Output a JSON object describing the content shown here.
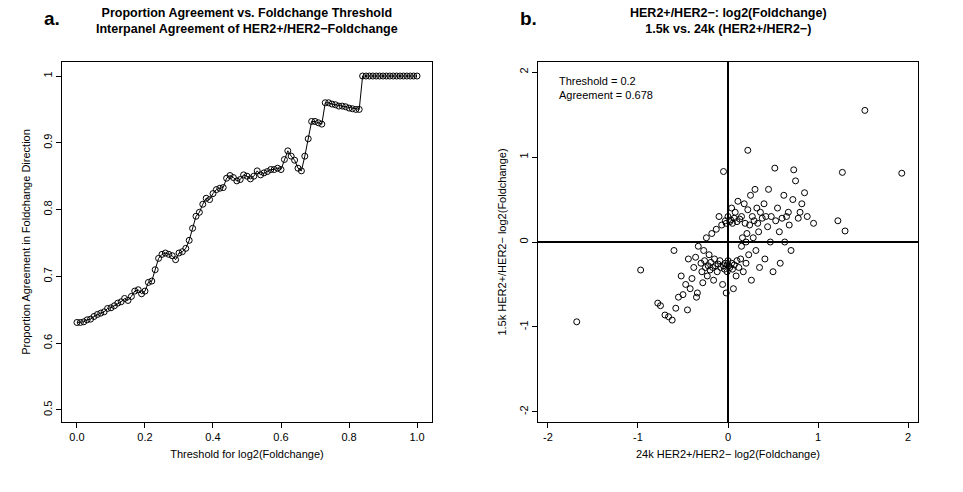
{
  "chart_data": [
    {
      "type": "line",
      "panel_label": "a.",
      "title": [
        "Proportion Agreement vs. Foldchange Threshold",
        "Interpanel Agreement of HER2+/HER2−Foldchange"
      ],
      "x_label": "Threshold for log2(Foldchange)",
      "y_label": "Proportion Agreement in Foldchange Direction",
      "x": [
        0,
        0.01,
        0.02,
        0.03,
        0.04,
        0.05,
        0.06,
        0.07,
        0.08,
        0.09,
        0.1,
        0.11,
        0.12,
        0.13,
        0.14,
        0.15,
        0.16,
        0.17,
        0.18,
        0.19,
        0.2,
        0.21,
        0.22,
        0.23,
        0.24,
        0.25,
        0.26,
        0.27,
        0.28,
        0.29,
        0.3,
        0.31,
        0.32,
        0.33,
        0.34,
        0.35,
        0.36,
        0.37,
        0.38,
        0.39,
        0.4,
        0.41,
        0.42,
        0.43,
        0.44,
        0.45,
        0.46,
        0.47,
        0.48,
        0.49,
        0.5,
        0.51,
        0.52,
        0.53,
        0.54,
        0.55,
        0.56,
        0.57,
        0.58,
        0.59,
        0.6,
        0.61,
        0.62,
        0.63,
        0.64,
        0.65,
        0.66,
        0.67,
        0.68,
        0.69,
        0.7,
        0.71,
        0.72,
        0.73,
        0.74,
        0.75,
        0.76,
        0.77,
        0.78,
        0.79,
        0.8,
        0.81,
        0.82,
        0.83,
        0.84,
        0.85,
        0.86,
        0.87,
        0.88,
        0.89,
        0.9,
        0.91,
        0.92,
        0.93,
        0.94,
        0.95,
        0.96,
        0.97,
        0.98,
        0.99,
        1
      ],
      "values": [
        0.631,
        0.631,
        0.632,
        0.635,
        0.636,
        0.64,
        0.643,
        0.645,
        0.647,
        0.652,
        0.653,
        0.656,
        0.66,
        0.662,
        0.667,
        0.664,
        0.67,
        0.678,
        0.68,
        0.674,
        0.678,
        0.691,
        0.693,
        0.71,
        0.727,
        0.733,
        0.735,
        0.733,
        0.731,
        0.725,
        0.735,
        0.737,
        0.742,
        0.754,
        0.772,
        0.79,
        0.796,
        0.808,
        0.817,
        0.815,
        0.824,
        0.83,
        0.832,
        0.833,
        0.847,
        0.851,
        0.848,
        0.843,
        0.845,
        0.852,
        0.85,
        0.846,
        0.85,
        0.858,
        0.852,
        0.855,
        0.857,
        0.86,
        0.86,
        0.862,
        0.86,
        0.875,
        0.888,
        0.88,
        0.874,
        0.862,
        0.858,
        0.88,
        0.906,
        0.932,
        0.932,
        0.93,
        0.928,
        0.96,
        0.96,
        0.958,
        0.957,
        0.955,
        0.955,
        0.954,
        0.952,
        0.951,
        0.95,
        0.95,
        1,
        1,
        1,
        1,
        1,
        1,
        1,
        1,
        1,
        1,
        1,
        1,
        1,
        1,
        1,
        1,
        1
      ],
      "color": "#000000",
      "marker": "circle-open",
      "line_style": "solid",
      "xlim": [
        -0.044,
        1.044
      ],
      "ylim": [
        0.482,
        1.021
      ],
      "xticks": [
        {
          "value": 0,
          "label": "0.0"
        },
        0.2,
        0.4,
        0.6,
        0.8,
        {
          "value": 1,
          "label": "1.0"
        }
      ],
      "yticks": [
        0.5,
        0.6,
        0.7,
        0.8,
        0.9,
        1
      ],
      "grid": false
    },
    {
      "type": "scatter",
      "panel_label": "b.",
      "title": [
        "HER2+/HER2−: log2(Foldchange)",
        "1.5k vs. 24k (HER2+/HER2−)"
      ],
      "x_label": "24k HER2+/HER2− log2(Foldchange)",
      "y_label": "1.5k HER2+/HER2− log2(Foldchange)",
      "annotations": [
        "Threshold = 0.2",
        "Agreement = 0.678"
      ],
      "x": [
        -1.68,
        -0.97,
        -0.78,
        -0.75,
        -0.7,
        -0.66,
        -0.62,
        -0.58,
        -0.55,
        -0.5,
        -0.47,
        -0.45,
        -0.42,
        -0.4,
        -0.38,
        -0.36,
        -0.34,
        -0.33,
        -0.3,
        -0.29,
        -0.28,
        -0.27,
        -0.26,
        -0.25,
        -0.24,
        -0.23,
        -0.22,
        -0.21,
        -0.2,
        -0.19,
        -0.18,
        -0.17,
        -0.16,
        -0.15,
        -0.14,
        -0.13,
        -0.12,
        -0.11,
        -0.1,
        -0.09,
        -0.08,
        -0.07,
        -0.06,
        -0.05,
        -0.05,
        -0.04,
        -0.03,
        -0.03,
        -0.02,
        -0.02,
        -0.01,
        -0.01,
        0,
        0,
        0.01,
        0.02,
        0.02,
        0.03,
        0.04,
        0.04,
        0.05,
        0.05,
        0.06,
        0.07,
        0.07,
        0.08,
        0.09,
        0.1,
        0.1,
        0.11,
        0.12,
        0.13,
        0.14,
        0.15,
        0.15,
        0.16,
        0.17,
        0.18,
        0.19,
        0.2,
        0.2,
        0.21,
        0.22,
        0.22,
        0.23,
        0.24,
        0.25,
        0.26,
        0.27,
        0.28,
        0.29,
        0.3,
        0.31,
        0.32,
        0.33,
        0.34,
        0.35,
        0.36,
        0.38,
        0.4,
        0.41,
        0.42,
        0.44,
        0.45,
        0.47,
        0.48,
        0.5,
        0.52,
        0.53,
        0.55,
        0.57,
        0.58,
        0.6,
        0.62,
        0.63,
        0.65,
        0.67,
        0.68,
        0.7,
        0.72,
        0.73,
        0.75,
        0.78,
        0.8,
        0.82,
        0.85,
        0.88,
        0.95,
        1.22,
        1.27,
        1.3,
        1.52,
        1.93,
        -0.6,
        -0.52,
        -0.44,
        -0.35
      ],
      "values": [
        -0.94,
        -0.33,
        -0.72,
        -0.75,
        -0.86,
        -0.88,
        -0.92,
        -0.78,
        -0.65,
        -0.62,
        -0.5,
        -0.8,
        -0.55,
        -0.43,
        -0.3,
        -0.18,
        -0.6,
        -0.05,
        -0.25,
        -0.35,
        -0.48,
        -0.1,
        -0.22,
        -0.3,
        0.05,
        -0.4,
        -0.28,
        -0.15,
        -0.33,
        -0.24,
        0.1,
        -0.3,
        -0.45,
        -0.2,
        -0.28,
        0.15,
        -0.35,
        -0.26,
        0.3,
        -0.22,
        -0.3,
        0.2,
        -0.5,
        0.83,
        -0.28,
        -0.32,
        0.25,
        -0.25,
        -0.6,
        0.22,
        -0.27,
        -0.35,
        0.3,
        -0.22,
        -0.28,
        0.24,
        -0.3,
        0.26,
        -0.25,
        0.4,
        -0.32,
        0.22,
        -0.55,
        0.28,
        -0.27,
        0.35,
        -0.4,
        0.24,
        -0.22,
        0.48,
        -0.3,
        0.27,
        -0.2,
        0.3,
        -0.05,
        0.05,
        -0.35,
        0.45,
        0.22,
        -0.25,
        0,
        0.1,
        1.08,
        0.38,
        -0.15,
        0.2,
        0.55,
        -0.45,
        0.3,
        0.05,
        0.25,
        0.62,
        -0.1,
        0.4,
        0.22,
        0.12,
        -0.3,
        0.35,
        0.28,
        0.45,
        -0.2,
        0.3,
        0.18,
        0.62,
        0,
        0.3,
        -0.35,
        0.87,
        0.25,
        0.4,
        0.12,
        -0.25,
        0.28,
        0.55,
        0,
        0.3,
        0.35,
        0.2,
        -0.1,
        0.5,
        0.85,
        0.72,
        0.28,
        0.35,
        0.45,
        0.58,
        0.3,
        0.22,
        0.25,
        0.82,
        0.13,
        1.55,
        0.81,
        -0.1,
        -0.4,
        -0.2,
        -0.65
      ],
      "color": "#000000",
      "marker": "circle-open",
      "xlim": [
        -2.11,
        2.11
      ],
      "ylim": [
        -2.12,
        2.12
      ],
      "xticks": [
        -2,
        -1,
        0,
        1,
        2
      ],
      "yticks": [
        -2,
        -1,
        0,
        1,
        2
      ],
      "grid": false
    }
  ]
}
